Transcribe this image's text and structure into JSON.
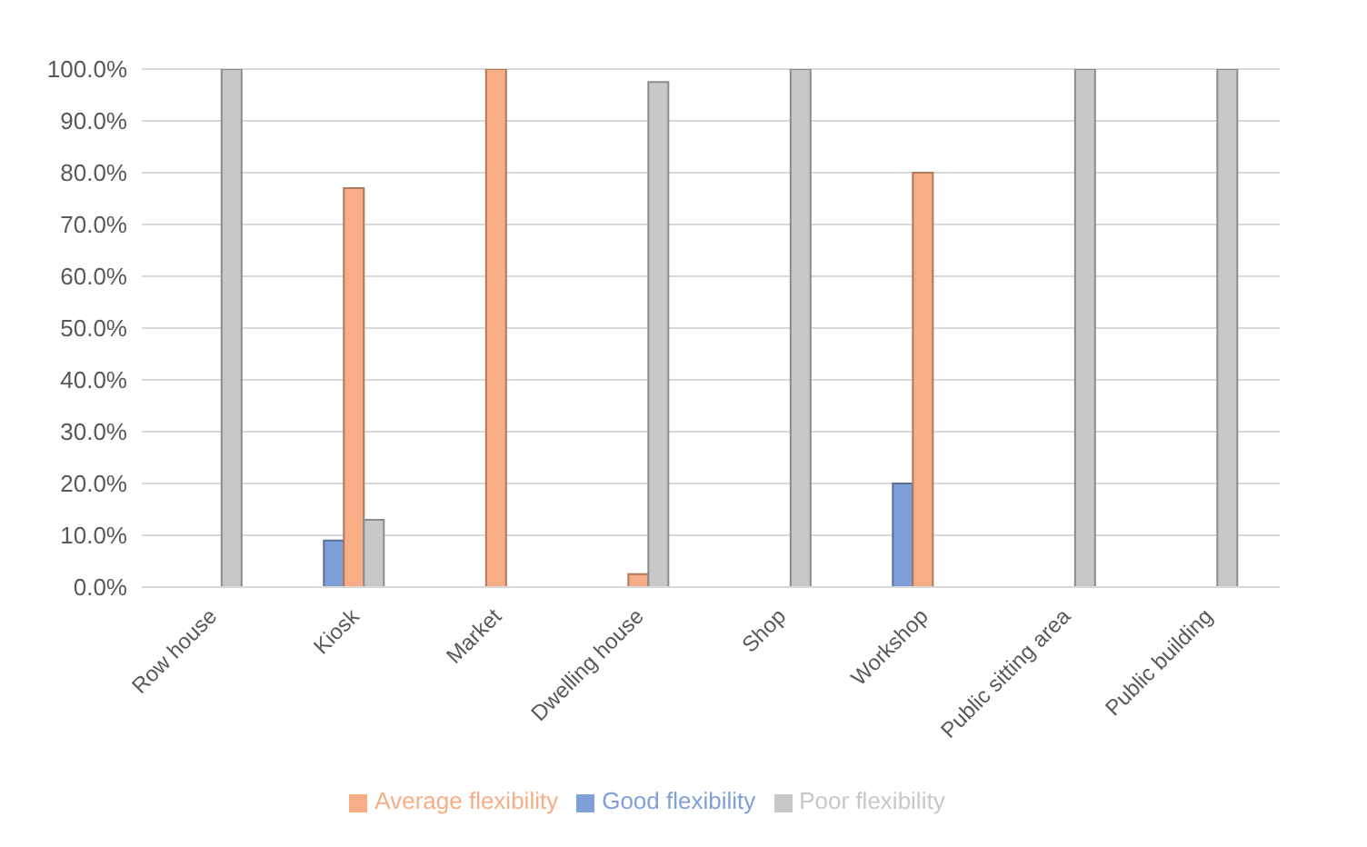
{
  "chart_data": {
    "type": "bar",
    "categories": [
      "Row house",
      "Kiosk",
      "Market",
      "Dwelling house",
      "Shop",
      "Workshop",
      "Public sitting area",
      "Public building"
    ],
    "series": [
      {
        "name": "Good flexibility",
        "color": "#7f9fd8",
        "values": [
          0,
          9,
          0,
          0,
          0,
          20,
          0,
          0
        ]
      },
      {
        "name": "Average flexibility",
        "color": "#f7ae86",
        "values": [
          0,
          77,
          100,
          2.5,
          0,
          80,
          0,
          0
        ]
      },
      {
        "name": "Poor flexibility",
        "color": "#c8c8c8",
        "values": [
          100,
          13,
          0,
          97.5,
          100,
          0,
          100,
          100
        ]
      }
    ],
    "ylim": [
      0,
      100
    ],
    "yticks": [
      {
        "value": 0,
        "label": "0.0%"
      },
      {
        "value": 10,
        "label": "10.0%"
      },
      {
        "value": 20,
        "label": "20.0%"
      },
      {
        "value": 30,
        "label": "30.0%"
      },
      {
        "value": 40,
        "label": "40.0%"
      },
      {
        "value": 50,
        "label": "50.0%"
      },
      {
        "value": 60,
        "label": "60.0%"
      },
      {
        "value": 70,
        "label": "70.0%"
      },
      {
        "value": 80,
        "label": "80.0%"
      },
      {
        "value": 90,
        "label": "90.0%"
      },
      {
        "value": 100,
        "label": "100.0%"
      }
    ],
    "grid": "y",
    "legend": "bottom"
  }
}
